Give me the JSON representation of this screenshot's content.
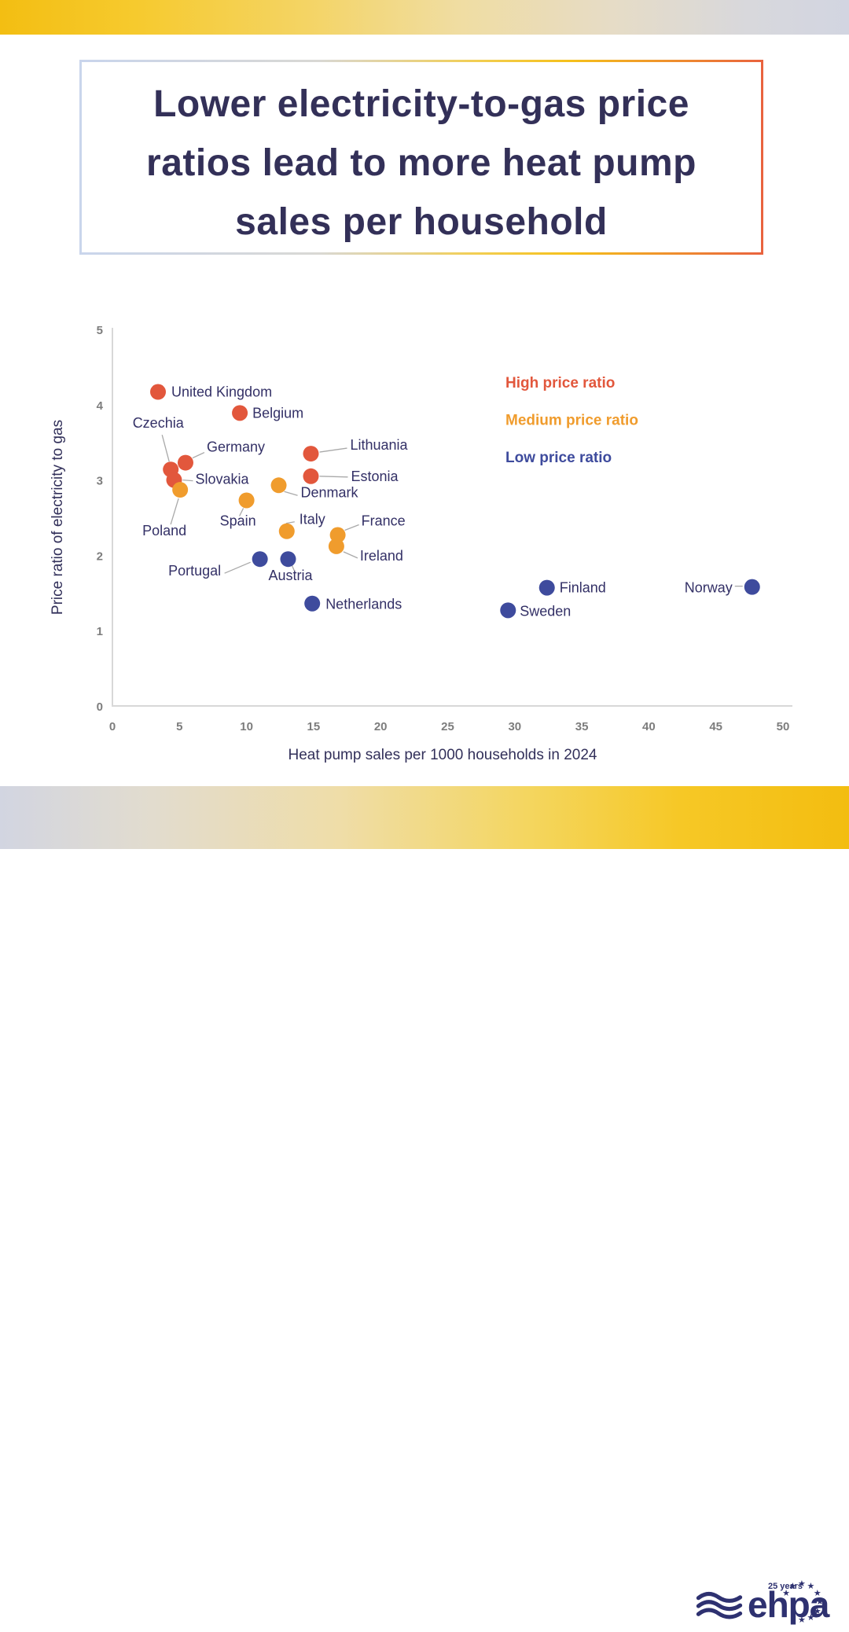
{
  "colors": {
    "high_price": "#e2573c",
    "medium_price": "#f09c2d",
    "low_price": "#3e4b9d",
    "title_navy": "#333058",
    "label_navy": "#333066",
    "tick_gray": "#7d7d7d",
    "axis_gray": "#d8d8d8",
    "banner_yellow": "#f3bd10",
    "banner_lavender": "#d2d5e1",
    "logo_navy": "#2e3170"
  },
  "title": {
    "lines": [
      "Lower electricity-to-gas price",
      "ratios lead to more heat pump",
      "sales per household"
    ]
  },
  "chart_data": {
    "type": "scatter",
    "title": "Lower electricity-to-gas price ratios lead to more heat pump sales per household",
    "xlabel": "Heat pump sales per 1000 households in 2024",
    "ylabel": "Price ratio of electricity to gas",
    "xlim": [
      0,
      50
    ],
    "ylim": [
      0,
      5
    ],
    "xticks": [
      0,
      5,
      10,
      15,
      20,
      25,
      30,
      35,
      40,
      45,
      50
    ],
    "yticks": [
      0,
      1,
      2,
      3,
      4,
      5
    ],
    "grid": false,
    "legend_position": "upper right",
    "series": [
      {
        "name": "High price ratio",
        "color": "#e2573c",
        "points": [
          {
            "label": "United Kingdom",
            "x": 3.4,
            "y": 4.17,
            "dx": 17,
            "dy": 6,
            "anchor": "start",
            "leader": null
          },
          {
            "label": "Belgium",
            "x": 9.5,
            "y": 3.89,
            "dx": 16,
            "dy": 6,
            "anchor": "start",
            "leader": null
          },
          {
            "label": "Czechia",
            "x": 4.35,
            "y": 3.14,
            "dx": -16,
            "dy": -53,
            "anchor": "middle",
            "leader": [
              -2,
              -10,
              -11,
              -44
            ]
          },
          {
            "label": "Germany",
            "x": 5.45,
            "y": 3.23,
            "dx": 27,
            "dy": -14,
            "anchor": "start",
            "leader": [
              9,
              -6,
              24,
              -13
            ]
          },
          {
            "label": "Slovakia",
            "x": 4.6,
            "y": 3.0,
            "dx": 27,
            "dy": 5,
            "anchor": "start",
            "leader": [
              11,
              0,
              24,
              1
            ]
          },
          {
            "label": "Lithuania",
            "x": 14.8,
            "y": 3.35,
            "dx": 50,
            "dy": -5,
            "anchor": "start",
            "leader": [
              11,
              -2,
              46,
              -7
            ]
          },
          {
            "label": "Estonia",
            "x": 14.8,
            "y": 3.05,
            "dx": 51,
            "dy": 6,
            "anchor": "start",
            "leader": [
              11,
              0,
              47,
              1
            ]
          }
        ]
      },
      {
        "name": "Medium price ratio",
        "color": "#f09c2d",
        "points": [
          {
            "label": "Poland",
            "x": 5.05,
            "y": 2.87,
            "dx": -20,
            "dy": 58,
            "anchor": "middle",
            "leader": [
              -2,
              11,
              -12,
              44
            ]
          },
          {
            "label": "Denmark",
            "x": 12.4,
            "y": 2.93,
            "dx": 28,
            "dy": 15,
            "anchor": "start",
            "leader": [
              7,
              8,
              24,
              13
            ]
          },
          {
            "label": "Spain",
            "x": 10.0,
            "y": 2.73,
            "dx": -11,
            "dy": 32,
            "anchor": "middle",
            "leader": [
              -4,
              10,
              -9,
              20
            ]
          },
          {
            "label": "Italy",
            "x": 13.0,
            "y": 2.32,
            "dx": 16,
            "dy": -9,
            "anchor": "start",
            "leader": [
              -1,
              -10,
              10,
              -12
            ]
          },
          {
            "label": "France",
            "x": 16.8,
            "y": 2.27,
            "dx": 30,
            "dy": -12,
            "anchor": "start",
            "leader": [
              9,
              -6,
              27,
              -13
            ]
          },
          {
            "label": "Ireland",
            "x": 16.7,
            "y": 2.12,
            "dx": 30,
            "dy": 18,
            "anchor": "start",
            "leader": [
              9,
              7,
              27,
              15
            ]
          }
        ]
      },
      {
        "name": "Low price ratio",
        "color": "#3e4b9d",
        "points": [
          {
            "label": "Portugal",
            "x": 11.0,
            "y": 1.95,
            "dx": -83,
            "dy": 21,
            "anchor": "middle",
            "leader": [
              -12,
              4,
              -45,
              18
            ]
          },
          {
            "label": "Austria",
            "x": 13.1,
            "y": 1.95,
            "dx": 3,
            "dy": 27,
            "anchor": "middle",
            "leader": [
              4,
              6,
              8,
              15
            ]
          },
          {
            "label": "Netherlands",
            "x": 14.9,
            "y": 1.36,
            "dx": 17,
            "dy": 7,
            "anchor": "start",
            "leader": null
          },
          {
            "label": "Finland",
            "x": 32.4,
            "y": 1.57,
            "dx": 16,
            "dy": 6,
            "anchor": "start",
            "leader": null
          },
          {
            "label": "Sweden",
            "x": 29.5,
            "y": 1.27,
            "dx": 15,
            "dy": 7,
            "anchor": "start",
            "leader": null
          },
          {
            "label": "Norway",
            "x": 47.7,
            "y": 1.58,
            "dx": -25,
            "dy": 7,
            "anchor": "end",
            "leader": [
              -12,
              -1,
              -22,
              -1
            ]
          }
        ]
      }
    ]
  },
  "logo": {
    "text": "ehpa",
    "years": "25 years"
  }
}
